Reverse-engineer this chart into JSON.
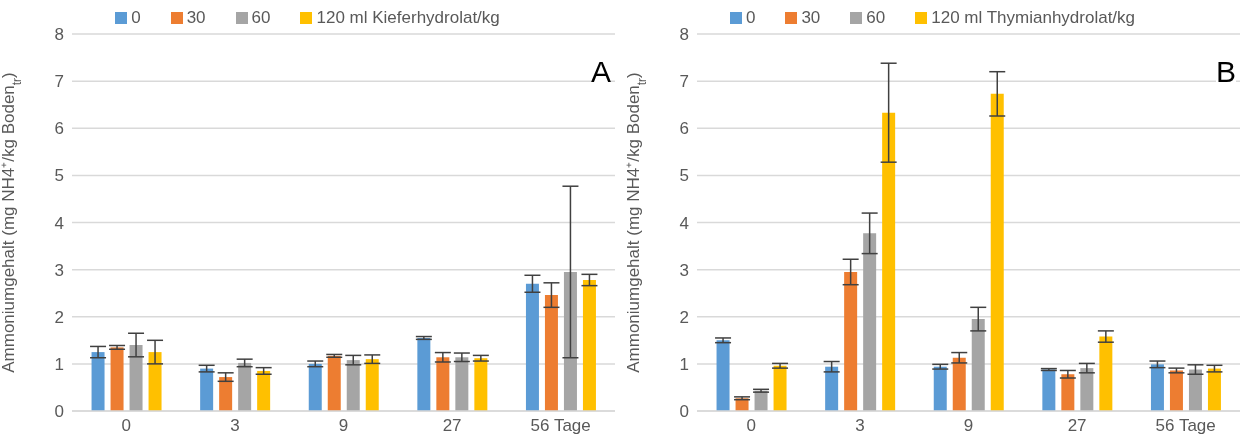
{
  "chart_data": [
    {
      "type": "bar",
      "ylabel": "Ammoniumgehalt  (mg NH4⁺/kg Boden$_{tr}$)",
      "annotations": [
        "A"
      ],
      "categories": [
        "0",
        "3",
        "9",
        "27",
        "56 Tage"
      ],
      "ylim": [
        0,
        8
      ],
      "yticks": [
        0,
        1,
        2,
        3,
        4,
        5,
        6,
        7,
        8
      ],
      "grid": "y",
      "legend": "top",
      "series": [
        {
          "name": "0",
          "color": "#5b9bd5",
          "values": [
            1.25,
            0.9,
            1.0,
            1.55,
            2.7
          ],
          "errors": [
            0.12,
            0.07,
            0.06,
            0.03,
            0.18
          ]
        },
        {
          "name": "30",
          "color": "#ed7d31",
          "values": [
            1.35,
            0.72,
            1.17,
            1.14,
            2.46
          ],
          "errors": [
            0.04,
            0.09,
            0.03,
            0.1,
            0.26
          ]
        },
        {
          "name": "60",
          "color": "#a5a5a5",
          "values": [
            1.4,
            1.02,
            1.08,
            1.14,
            2.95
          ],
          "errors": [
            0.25,
            0.08,
            0.1,
            0.09,
            1.82
          ]
        },
        {
          "name": "120 ml Kieferhydrolat/kg",
          "color": "#ffc000",
          "values": [
            1.25,
            0.85,
            1.1,
            1.12,
            2.78
          ],
          "errors": [
            0.25,
            0.07,
            0.09,
            0.06,
            0.12
          ]
        }
      ]
    },
    {
      "type": "bar",
      "ylabel": "Ammoniumgehalt  (mg NH4⁺/kg Boden$_{tr}$)",
      "annotations": [
        "B"
      ],
      "categories": [
        "0",
        "3",
        "9",
        "27",
        "56 Tage"
      ],
      "ylim": [
        0,
        8
      ],
      "yticks": [
        0,
        1,
        2,
        3,
        4,
        5,
        6,
        7,
        8
      ],
      "grid": "y",
      "legend": "top",
      "series": [
        {
          "name": "0",
          "color": "#5b9bd5",
          "values": [
            1.5,
            0.94,
            0.94,
            0.88,
            0.99
          ],
          "errors": [
            0.05,
            0.11,
            0.05,
            0.02,
            0.07
          ]
        },
        {
          "name": "30",
          "color": "#ed7d31",
          "values": [
            0.27,
            2.95,
            1.13,
            0.78,
            0.86
          ],
          "errors": [
            0.03,
            0.27,
            0.11,
            0.08,
            0.05
          ]
        },
        {
          "name": "60",
          "color": "#a5a5a5",
          "values": [
            0.43,
            3.77,
            1.95,
            0.91,
            0.88
          ],
          "errors": [
            0.03,
            0.43,
            0.25,
            0.1,
            0.1
          ]
        },
        {
          "name": "120 ml Thymianhydrolat/kg",
          "color": "#ffc000",
          "values": [
            0.96,
            6.33,
            6.73,
            1.58,
            0.9
          ],
          "errors": [
            0.05,
            1.05,
            0.47,
            0.12,
            0.07
          ]
        }
      ]
    }
  ]
}
